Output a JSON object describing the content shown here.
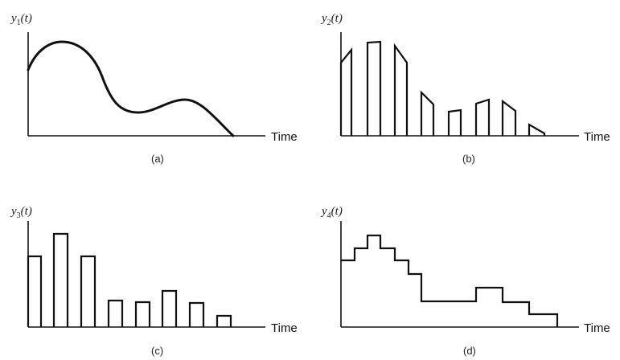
{
  "panels": {
    "a": {
      "ylabel_main": "y",
      "ylabel_sub": "1",
      "ylabel_arg": "(t)",
      "xlabel": "Time",
      "caption": "(a)"
    },
    "b": {
      "ylabel_main": "y",
      "ylabel_sub": "2",
      "ylabel_arg": "(t)",
      "xlabel": "Time",
      "caption": "(b)"
    },
    "c": {
      "ylabel_main": "y",
      "ylabel_sub": "3",
      "ylabel_arg": "(t)",
      "xlabel": "Time",
      "caption": "(c)"
    },
    "d": {
      "ylabel_main": "y",
      "ylabel_sub": "4",
      "ylabel_arg": "(t)",
      "xlabel": "Time",
      "caption": "(d)"
    }
  },
  "colors": {
    "line": "#111111",
    "background": "#ffffff"
  }
}
